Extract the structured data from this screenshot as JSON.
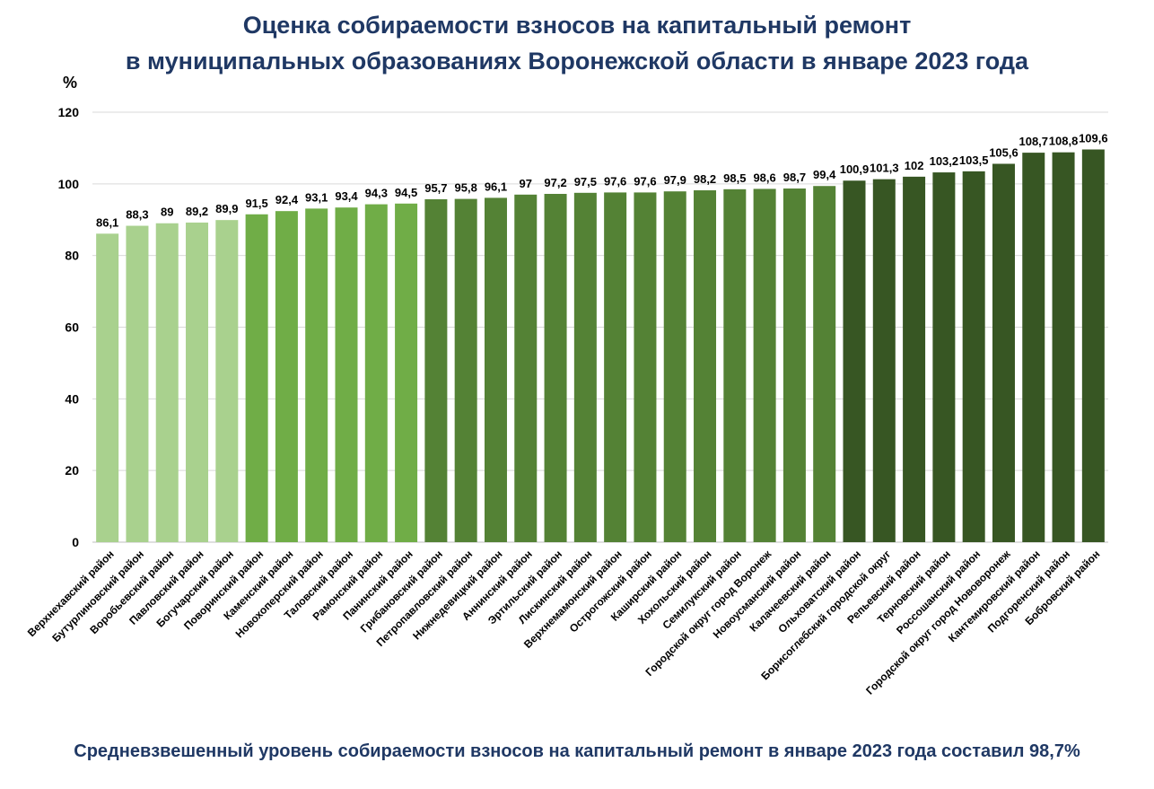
{
  "title_line1": "Оценка собираемости взносов на капитальный ремонт",
  "title_line2": "в муниципальных образованиях Воронежской области в январе 2023 года",
  "footer": "Средневзвешенный уровень собираемости взносов на капитальный ремонт в январе 2023 года составил 98,7%",
  "colors": {
    "title": "#1f3864",
    "grid": "#d9d9d9",
    "axis": "#bfbfbf"
  },
  "chart_data": {
    "type": "bar",
    "ylabel": "%",
    "ylim": [
      0,
      120
    ],
    "yticks": [
      0,
      20,
      40,
      60,
      80,
      100,
      120
    ],
    "grid": true,
    "categories": [
      "Верхнехавский район",
      "Бутурлиновский район",
      "Воробьевский район",
      "Павловский район",
      "Богучарский район",
      "Поворинский район",
      "Каменский район",
      "Новохоперский район",
      "Таловский район",
      "Рамонский район",
      "Панинский район",
      "Грибановский район",
      "Петропавловский район",
      "Нижнедевицкий район",
      "Аннинский район",
      "Эртильский район",
      "Лискинский район",
      "Верхнемамонский район",
      "Острогожский район",
      "Каширский район",
      "Хохольский район",
      "Семилукский район",
      "Городской округ город Воронеж",
      "Новоусманский район",
      "Калачеевский район",
      "Ольховатский район",
      "Борисоглебский городской округ",
      "Репьевский район",
      "Терновский район",
      "Россошанский район",
      "Городской округ город Нововоронеж",
      "Кантемировский район",
      "Подгоренский район",
      "Бобровский район"
    ],
    "values": [
      86.1,
      88.3,
      89,
      89.2,
      89.9,
      91.5,
      92.4,
      93.1,
      93.4,
      94.3,
      94.5,
      95.7,
      95.8,
      96.1,
      97,
      97.2,
      97.5,
      97.6,
      97.6,
      97.9,
      98.2,
      98.5,
      98.6,
      98.7,
      99.4,
      100.9,
      101.3,
      102,
      103.2,
      103.5,
      105.6,
      108.7,
      108.8,
      109.6
    ],
    "value_labels": [
      "86,1",
      "88,3",
      "89",
      "89,2",
      "89,9",
      "91,5",
      "92,4",
      "93,1",
      "93,4",
      "94,3",
      "94,5",
      "95,7",
      "95,8",
      "96,1",
      "97",
      "97,2",
      "97,5",
      "97,6",
      "97,6",
      "97,9",
      "98,2",
      "98,5",
      "98,6",
      "98,7",
      "99,4",
      "100,9",
      "101,3",
      "102",
      "103,2",
      "103,5",
      "105,6",
      "108,7",
      "108,8",
      "109,6"
    ],
    "bar_colors": [
      "#a9d18e",
      "#a9d18e",
      "#a9d18e",
      "#a9d18e",
      "#a9d18e",
      "#70ad47",
      "#70ad47",
      "#70ad47",
      "#70ad47",
      "#70ad47",
      "#70ad47",
      "#548235",
      "#548235",
      "#548235",
      "#548235",
      "#548235",
      "#548235",
      "#548235",
      "#548235",
      "#548235",
      "#548235",
      "#548235",
      "#548235",
      "#548235",
      "#548235",
      "#375623",
      "#375623",
      "#375623",
      "#375623",
      "#375623",
      "#375623",
      "#375623",
      "#375623",
      "#375623"
    ]
  }
}
